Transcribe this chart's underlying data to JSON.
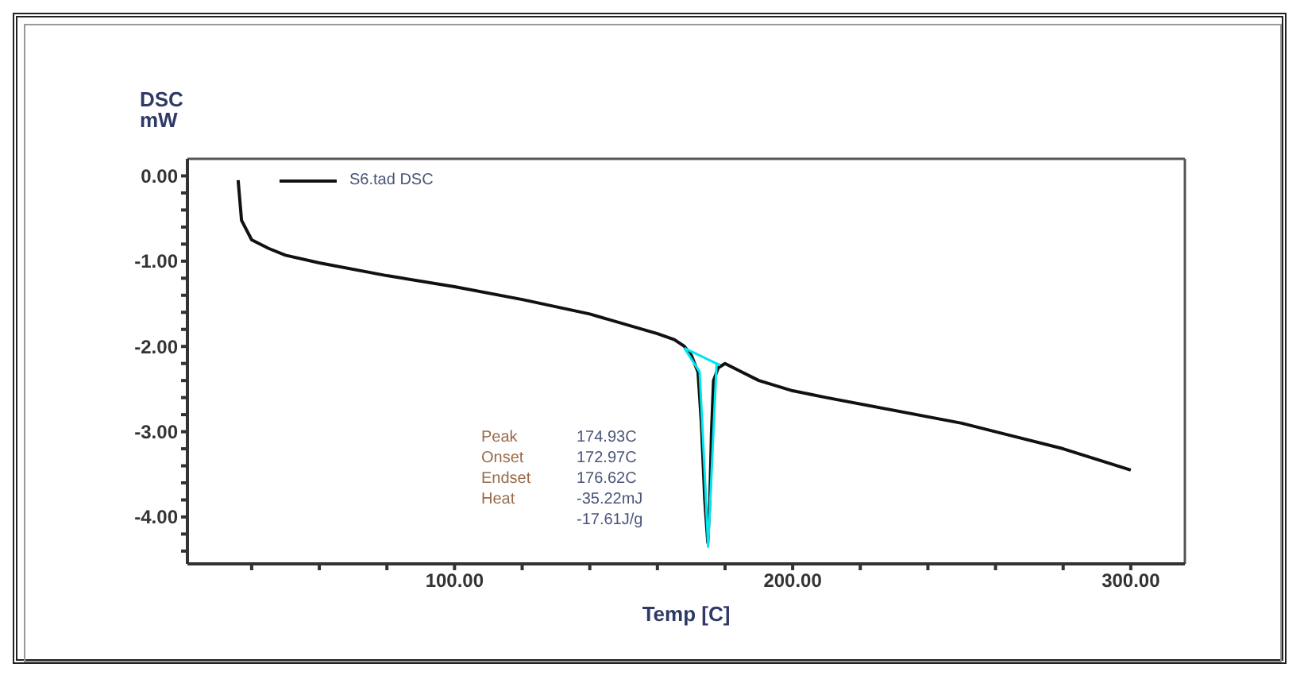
{
  "chart_data": {
    "type": "line",
    "xlabel": "Temp [C]",
    "ylabel": "DSC mW",
    "xlim": [
      21,
      316
    ],
    "ylim": [
      -4.55,
      0.2
    ],
    "xticks": [
      {
        "value": 40,
        "label": null
      },
      {
        "value": 60,
        "label": null
      },
      {
        "value": 80,
        "label": null
      },
      {
        "value": 100,
        "label": "100.00"
      },
      {
        "value": 120,
        "label": null
      },
      {
        "value": 140,
        "label": null
      },
      {
        "value": 160,
        "label": null
      },
      {
        "value": 180,
        "label": null
      },
      {
        "value": 200,
        "label": "200.00"
      },
      {
        "value": 220,
        "label": null
      },
      {
        "value": 240,
        "label": null
      },
      {
        "value": 260,
        "label": null
      },
      {
        "value": 280,
        "label": null
      },
      {
        "value": 300,
        "label": "300.00"
      }
    ],
    "yticks": [
      {
        "value": 0,
        "label": "0.00"
      },
      {
        "value": -0.2,
        "label": null
      },
      {
        "value": -0.4,
        "label": null
      },
      {
        "value": -0.6,
        "label": null
      },
      {
        "value": -0.8,
        "label": null
      },
      {
        "value": -1,
        "label": "-1.00"
      },
      {
        "value": -1.2,
        "label": null
      },
      {
        "value": -1.4,
        "label": null
      },
      {
        "value": -1.6,
        "label": null
      },
      {
        "value": -1.8,
        "label": null
      },
      {
        "value": -2,
        "label": "-2.00"
      },
      {
        "value": -2.2,
        "label": null
      },
      {
        "value": -2.4,
        "label": null
      },
      {
        "value": -2.6,
        "label": null
      },
      {
        "value": -2.8,
        "label": null
      },
      {
        "value": -3,
        "label": "-3.00"
      },
      {
        "value": -3.2,
        "label": null
      },
      {
        "value": -3.4,
        "label": null
      },
      {
        "value": -3.6,
        "label": null
      },
      {
        "value": -3.8,
        "label": null
      },
      {
        "value": -4,
        "label": "-4.00"
      },
      {
        "value": -4.2,
        "label": null
      },
      {
        "value": -4.4,
        "label": null
      }
    ],
    "grid": false,
    "legend": "top left",
    "marker": "none",
    "line_style": "solid",
    "series": [
      {
        "name": "S6.tad DSC",
        "color": "#111111",
        "x": [
          36,
          37,
          40,
          45,
          50,
          60,
          80,
          100,
          120,
          140,
          160,
          165,
          168,
          170,
          172,
          173,
          174,
          174.9,
          175.5,
          176,
          176.6,
          178,
          180,
          185,
          190,
          200,
          210,
          250,
          280,
          300
        ],
        "values": [
          -0.05,
          -0.52,
          -0.75,
          -0.85,
          -0.93,
          -1.02,
          -1.17,
          -1.3,
          -1.45,
          -1.62,
          -1.85,
          -1.92,
          -2.0,
          -2.1,
          -2.3,
          -2.9,
          -3.8,
          -4.3,
          -3.8,
          -3.0,
          -2.4,
          -2.25,
          -2.2,
          -2.3,
          -2.4,
          -2.52,
          -2.6,
          -2.9,
          -3.2,
          -3.45
        ]
      },
      {
        "color": "#00e5ee",
        "x": [
          168,
          178.5
        ],
        "values": [
          -2.02,
          -2.22
        ]
      },
      {
        "color": "#00e5ee",
        "x": [
          168,
          172.5,
          174,
          175,
          176,
          177.5,
          178.5
        ],
        "values": [
          -2.02,
          -2.3,
          -3.5,
          -4.35,
          -3.5,
          -2.2,
          -2.22
        ]
      }
    ],
    "annotations": [
      "Peak",
      "174.93C",
      "Onset",
      "172.97C",
      "Endset",
      "176.62C",
      "Heat",
      "-35.22mJ",
      "-17.61J/g"
    ]
  }
}
